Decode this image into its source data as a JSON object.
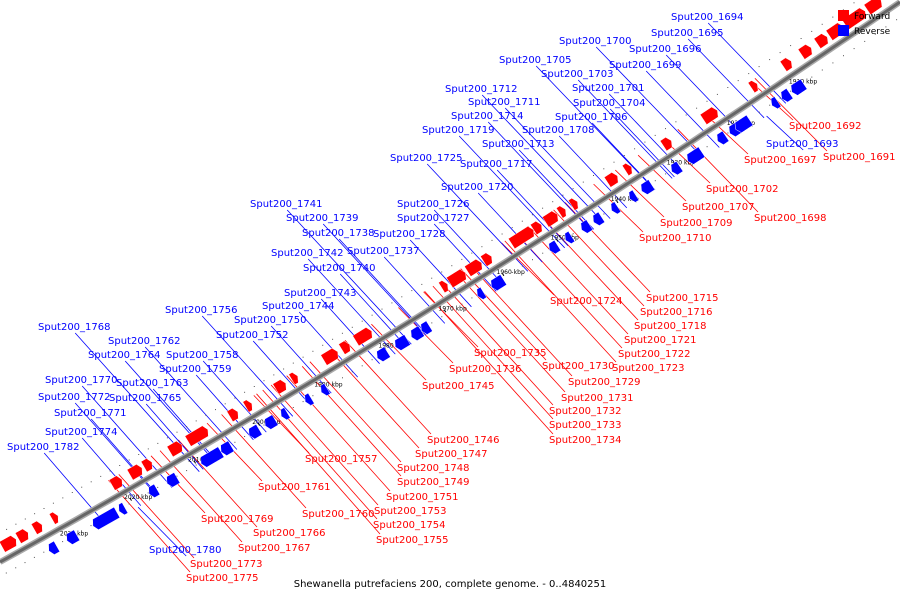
{
  "caption": "Shewanella putrefaciens 200, complete genome. - 0..4840251",
  "legend": [
    {
      "label": "Forward",
      "color": "#ff0000"
    },
    {
      "label": "Reverse",
      "color": "#0000ff"
    }
  ],
  "colors": {
    "forward": "#ff0000",
    "reverse": "#0000ff",
    "backbone": "#777777"
  },
  "ticks": [
    "1910 kbp",
    "1920 kbp",
    "1930 kbp",
    "1940 kbp",
    "1950 kbp",
    "1960 kbp",
    "1970 kbp",
    "1980 kbp",
    "1990 kbp",
    "2000 kbp",
    "2010 kbp",
    "2020 kbp",
    "2030 kbp"
  ],
  "forward_genes": [
    "Sput200_1691",
    "Sput200_1692",
    "Sput200_1697",
    "Sput200_1698",
    "Sput200_1702",
    "Sput200_1707",
    "Sput200_1709",
    "Sput200_1710",
    "Sput200_1715",
    "Sput200_1716",
    "Sput200_1718",
    "Sput200_1721",
    "Sput200_1722",
    "Sput200_1723",
    "Sput200_1724",
    "Sput200_1729",
    "Sput200_1730",
    "Sput200_1731",
    "Sput200_1732",
    "Sput200_1733",
    "Sput200_1734",
    "Sput200_1735",
    "Sput200_1736",
    "Sput200_1745",
    "Sput200_1746",
    "Sput200_1747",
    "Sput200_1748",
    "Sput200_1749",
    "Sput200_1751",
    "Sput200_1753",
    "Sput200_1754",
    "Sput200_1755",
    "Sput200_1757",
    "Sput200_1760",
    "Sput200_1761",
    "Sput200_1766",
    "Sput200_1767",
    "Sput200_1769",
    "Sput200_1773",
    "Sput200_1775"
  ],
  "reverse_genes": [
    "Sput200_1693",
    "Sput200_1694",
    "Sput200_1695",
    "Sput200_1696",
    "Sput200_1699",
    "Sput200_1700",
    "Sput200_1701",
    "Sput200_1703",
    "Sput200_1704",
    "Sput200_1705",
    "Sput200_1706",
    "Sput200_1708",
    "Sput200_1711",
    "Sput200_1712",
    "Sput200_1713",
    "Sput200_1714",
    "Sput200_1717",
    "Sput200_1719",
    "Sput200_1720",
    "Sput200_1725",
    "Sput200_1726",
    "Sput200_1727",
    "Sput200_1728",
    "Sput200_1737",
    "Sput200_1738",
    "Sput200_1739",
    "Sput200_1740",
    "Sput200_1741",
    "Sput200_1742",
    "Sput200_1743",
    "Sput200_1744",
    "Sput200_1750",
    "Sput200_1752",
    "Sput200_1756",
    "Sput200_1758",
    "Sput200_1759",
    "Sput200_1762",
    "Sput200_1763",
    "Sput200_1764",
    "Sput200_1765",
    "Sput200_1768",
    "Sput200_1770",
    "Sput200_1771",
    "Sput200_1772",
    "Sput200_1774",
    "Sput200_1780",
    "Sput200_1782"
  ]
}
